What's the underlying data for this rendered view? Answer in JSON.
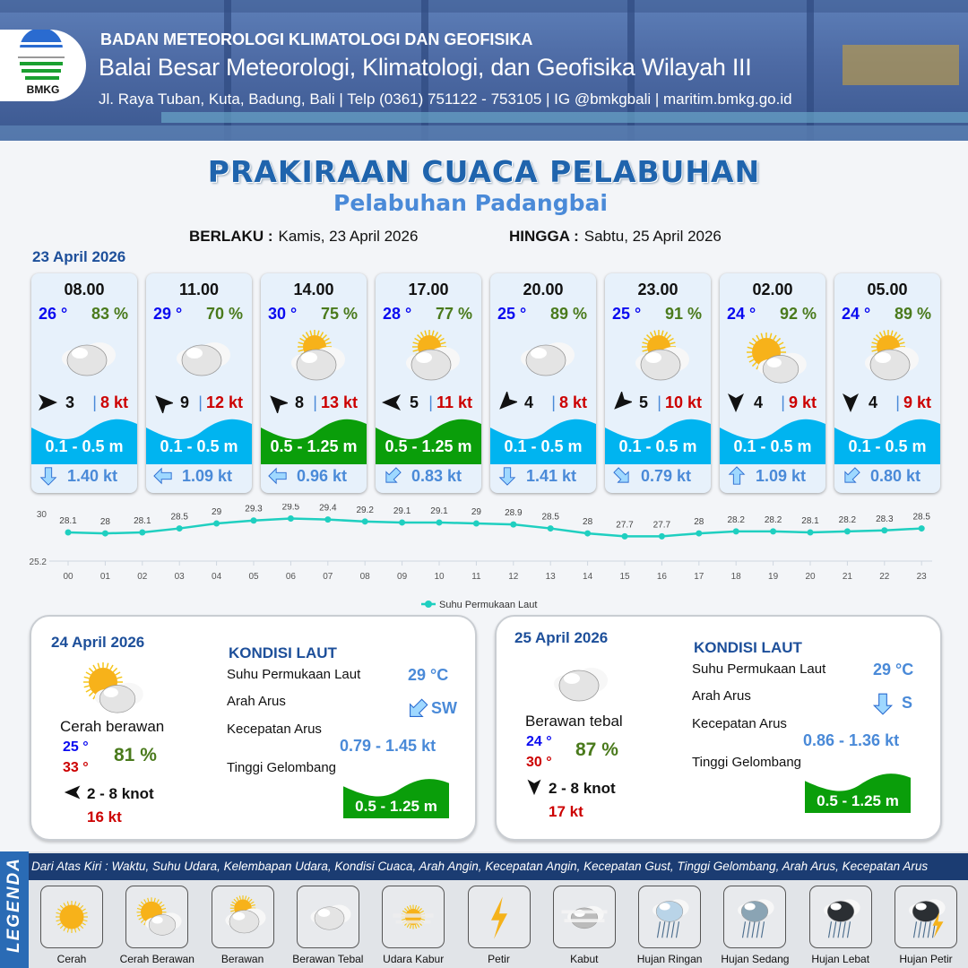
{
  "header": {
    "logo_text": "BMKG",
    "org": "BADAN METEOROLOGI KLIMATOLOGI DAN GEOFISIKA",
    "office": "Balai Besar Meteorologi, Klimatologi, dan Geofisika Wilayah III",
    "contact": "Jl. Raya Tuban, Kuta, Badung, Bali | Telp (0361) 751122 - 753105 | IG @bmkgbali | maritim.bmkg.go.id"
  },
  "title": "PRAKIRAAN CUACA PELABUHAN",
  "subtitle": "Pelabuhan Padangbai",
  "validity": {
    "from_label": "BERLAKU :",
    "from": "Kamis, 23 April 2026",
    "to_label": "HINGGA :",
    "to": "Sabtu, 25 April 2026"
  },
  "day1": "23 April 2026",
  "colors": {
    "wave_low": "#00b4f0",
    "wave_mid": "#0a9e0a",
    "accent": "#1f64ad"
  },
  "forecast": [
    {
      "time": "08.00",
      "temp": "26 °",
      "hum": "83 %",
      "weather": "Berawan Tebal",
      "wind_dir": "E",
      "wind": "3",
      "gust": "8 kt",
      "wave": "0.1 - 0.5 m",
      "wave_class": "low",
      "cur_dir": "S",
      "cur": "1.40 kt"
    },
    {
      "time": "11.00",
      "temp": "29 °",
      "hum": "70 %",
      "weather": "Berawan Tebal",
      "wind_dir": "NW",
      "wind": "9",
      "gust": "12 kt",
      "wave": "0.1 - 0.5 m",
      "wave_class": "low",
      "cur_dir": "W",
      "cur": "1.09 kt"
    },
    {
      "time": "14.00",
      "temp": "30 °",
      "hum": "75 %",
      "weather": "Berawan",
      "wind_dir": "NW",
      "wind": "8",
      "gust": "13 kt",
      "wave": "0.5 - 1.25 m",
      "wave_class": "mid",
      "cur_dir": "W",
      "cur": "0.96 kt"
    },
    {
      "time": "17.00",
      "temp": "28 °",
      "hum": "77 %",
      "weather": "Berawan",
      "wind_dir": "W",
      "wind": "5",
      "gust": "11 kt",
      "wave": "0.5 - 1.25 m",
      "wave_class": "mid",
      "cur_dir": "SW",
      "cur": "0.83 kt"
    },
    {
      "time": "20.00",
      "temp": "25 °",
      "hum": "89 %",
      "weather": "Berawan Tebal",
      "wind_dir": "SW",
      "wind": "4",
      "gust": "8 kt",
      "wave": "0.1 - 0.5 m",
      "wave_class": "low",
      "cur_dir": "S",
      "cur": "1.41 kt"
    },
    {
      "time": "23.00",
      "temp": "25 °",
      "hum": "91 %",
      "weather": "Berawan",
      "wind_dir": "SW",
      "wind": "5",
      "gust": "10 kt",
      "wave": "0.1 - 0.5 m",
      "wave_class": "low",
      "cur_dir": "SE",
      "cur": "0.79 kt"
    },
    {
      "time": "02.00",
      "temp": "24 °",
      "hum": "92 %",
      "weather": "Cerah Berawan",
      "wind_dir": "S",
      "wind": "4",
      "gust": "9 kt",
      "wave": "0.1 - 0.5 m",
      "wave_class": "low",
      "cur_dir": "N",
      "cur": "1.09 kt"
    },
    {
      "time": "05.00",
      "temp": "24 °",
      "hum": "89 %",
      "weather": "Berawan",
      "wind_dir": "S",
      "wind": "4",
      "gust": "9 kt",
      "wave": "0.1 - 0.5 m",
      "wave_class": "low",
      "cur_dir": "SW",
      "cur": "0.80 kt"
    }
  ],
  "chart_data": {
    "type": "line",
    "x": [
      "00",
      "01",
      "02",
      "03",
      "04",
      "05",
      "06",
      "07",
      "08",
      "09",
      "10",
      "11",
      "12",
      "13",
      "14",
      "15",
      "16",
      "17",
      "18",
      "19",
      "20",
      "21",
      "22",
      "23"
    ],
    "series": [
      {
        "name": "Suhu Permukaan Laut",
        "color": "#1fcfc0",
        "values": [
          28.1,
          28.0,
          28.1,
          28.5,
          29.0,
          29.3,
          29.5,
          29.4,
          29.2,
          29.1,
          29.1,
          29.0,
          28.9,
          28.5,
          28.0,
          27.7,
          27.7,
          28.0,
          28.2,
          28.2,
          28.1,
          28.2,
          28.3,
          28.5
        ]
      }
    ],
    "yticks": [
      "30",
      "25.2"
    ],
    "ylim": [
      25.2,
      30
    ],
    "legend": "bottom",
    "grid": true
  },
  "days": [
    {
      "date": "24 April 2026",
      "weather_icon": "Cerah Berawan",
      "condition": "Cerah berawan",
      "tmin": "25 °",
      "tmax": "33 °",
      "hum": "81 %",
      "wind_dir": "W",
      "wind": "2 - 8 knot",
      "gust": "16 kt",
      "sea_title": "KONDISI LAUT",
      "sst_label": "Suhu Permukaan Laut",
      "sst": "29 °C",
      "cur_dir_label": "Arah Arus",
      "cur_dir": "SW",
      "cur_speed_label": "Kecepatan Arus",
      "cur_speed": "0.79 - 1.45 kt",
      "wave_label": "Tinggi Gelombang",
      "wave": "0.5 - 1.25 m"
    },
    {
      "date": "25 April 2026",
      "weather_icon": "Berawan Tebal",
      "condition": "Berawan tebal",
      "tmin": "24 °",
      "tmax": "30 °",
      "hum": "87 %",
      "wind_dir": "S",
      "wind": "2 - 8 knot",
      "gust": "17 kt",
      "sea_title": "KONDISI LAUT",
      "sst_label": "Suhu Permukaan Laut",
      "sst": "29 °C",
      "cur_dir_label": "Arah Arus",
      "cur_dir": "S",
      "cur_speed_label": "Kecepatan Arus",
      "cur_speed": "0.86 - 1.36 kt",
      "wave_label": "Tinggi Gelombang",
      "wave": "0.5 - 1.25 m"
    }
  ],
  "legend": {
    "side_label": "LEGENDA",
    "description": "Dari Atas Kiri : Waktu, Suhu Udara, Kelembapan Udara, Kondisi Cuaca, Arah Angin, Kecepatan Angin, Kecepatan Gust, Tinggi Gelombang, Arah Arus, Kecepatan Arus",
    "items": [
      "Cerah",
      "Cerah Berawan",
      "Berawan",
      "Berawan Tebal",
      "Udara Kabur",
      "Petir",
      "Kabut",
      "Hujan Ringan",
      "Hujan Sedang",
      "Hujan Lebat",
      "Hujan Petir"
    ]
  }
}
